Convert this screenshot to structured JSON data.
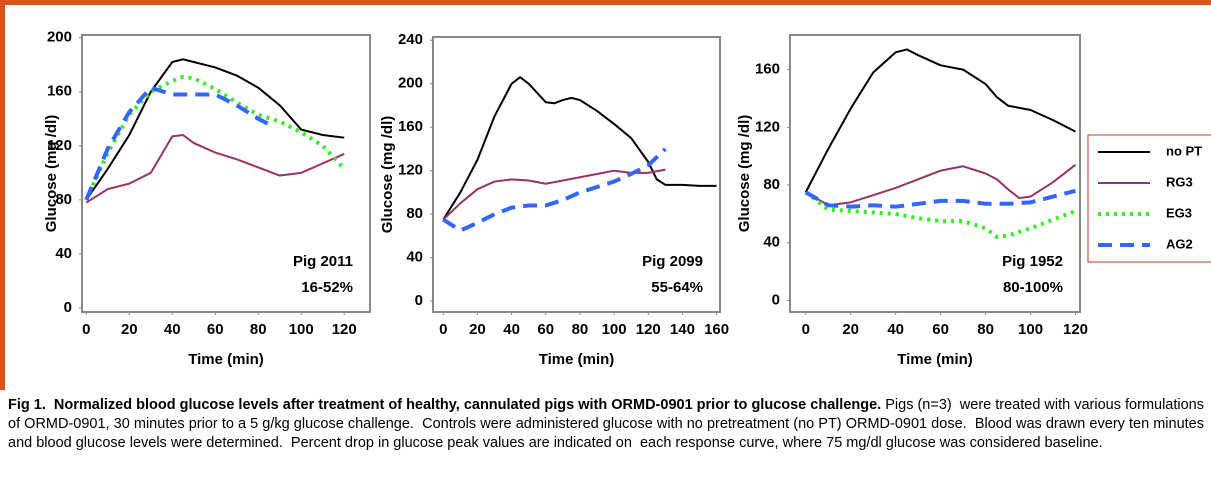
{
  "chart_data": [
    {
      "type": "line",
      "x_label": "Time (min)",
      "y_label": "Glucose (mg /dl)",
      "annotations": [
        "Pig 2011",
        "16-52%"
      ],
      "xlim": [
        -2,
        132
      ],
      "ylim": [
        -3,
        202
      ],
      "xticks": [
        0,
        20,
        40,
        60,
        80,
        100,
        120
      ],
      "yticks": [
        0,
        40,
        80,
        120,
        160,
        200
      ],
      "series": [
        {
          "color": "#000000",
          "dash": "solid",
          "x": [
            0,
            10,
            20,
            30,
            40,
            45,
            50,
            60,
            70,
            80,
            90,
            100,
            110,
            120
          ],
          "values": [
            80,
            103,
            128,
            160,
            182,
            184,
            182,
            178,
            172,
            163,
            150,
            132,
            128,
            126
          ]
        },
        {
          "color": "#993366",
          "dash": "solid",
          "x": [
            0,
            10,
            20,
            30,
            40,
            45,
            50,
            60,
            70,
            80,
            90,
            100,
            110,
            120
          ],
          "values": [
            78,
            88,
            92,
            100,
            127,
            128,
            122,
            115,
            110,
            104,
            98,
            100,
            107,
            114
          ]
        },
        {
          "color": "#33ee22",
          "dash": "dotted",
          "x": [
            0,
            10,
            20,
            30,
            40,
            45,
            50,
            60,
            70,
            80,
            90,
            100,
            110,
            120
          ],
          "values": [
            80,
            115,
            143,
            160,
            168,
            171,
            170,
            162,
            152,
            143,
            138,
            130,
            120,
            103
          ]
        },
        {
          "color": "#3366ff",
          "dash": "dashed",
          "x": [
            0,
            10,
            20,
            30,
            40,
            50,
            60,
            70,
            80,
            85
          ],
          "values": [
            80,
            118,
            145,
            163,
            158,
            158,
            158,
            150,
            140,
            136
          ]
        }
      ]
    },
    {
      "type": "line",
      "x_label": "Time (min)",
      "y_label": "Glucose (mg /dl)",
      "annotations": [
        "Pig 2099",
        "55-64%"
      ],
      "xlim": [
        -6,
        162
      ],
      "ylim": [
        -10,
        243
      ],
      "xticks": [
        0,
        20,
        40,
        60,
        80,
        100,
        120,
        140,
        160
      ],
      "yticks": [
        0,
        40,
        80,
        120,
        160,
        200,
        240
      ],
      "series": [
        {
          "color": "#000000",
          "dash": "solid",
          "x": [
            0,
            10,
            20,
            30,
            40,
            45,
            50,
            60,
            65,
            70,
            75,
            80,
            90,
            100,
            110,
            120,
            125,
            130,
            140,
            150,
            160
          ],
          "values": [
            75,
            100,
            130,
            170,
            200,
            206,
            200,
            183,
            182,
            185,
            187,
            185,
            175,
            163,
            150,
            128,
            112,
            107,
            107,
            106,
            106
          ]
        },
        {
          "color": "#993366",
          "dash": "solid",
          "x": [
            0,
            10,
            20,
            30,
            40,
            50,
            60,
            70,
            80,
            90,
            100,
            110,
            120,
            130
          ],
          "values": [
            75,
            90,
            103,
            110,
            112,
            111,
            108,
            111,
            114,
            117,
            120,
            118,
            118,
            121
          ]
        },
        {
          "color": "#3366ff",
          "dash": "dashed",
          "x": [
            0,
            10,
            20,
            30,
            40,
            50,
            60,
            70,
            80,
            90,
            100,
            110,
            120,
            130
          ],
          "values": [
            75,
            65,
            72,
            80,
            86,
            88,
            88,
            93,
            100,
            105,
            110,
            117,
            125,
            140
          ]
        }
      ]
    },
    {
      "type": "line",
      "x_label": "Time (min)",
      "y_label": "Glucose (mg /dl)",
      "annotations": [
        "Pig 1952",
        "80-100%"
      ],
      "xlim": [
        -7,
        122
      ],
      "ylim": [
        -8,
        184
      ],
      "xticks": [
        0,
        20,
        40,
        60,
        80,
        100,
        120
      ],
      "yticks": [
        0,
        40,
        80,
        120,
        160
      ],
      "series": [
        {
          "name": "no PT",
          "color": "#000000",
          "dash": "solid",
          "x": [
            0,
            10,
            20,
            30,
            40,
            45,
            50,
            60,
            70,
            80,
            85,
            90,
            100,
            110,
            120
          ],
          "values": [
            75,
            105,
            133,
            158,
            172,
            174,
            170,
            163,
            160,
            150,
            141,
            135,
            132,
            125,
            117
          ]
        },
        {
          "name": "RG3",
          "color": "#993366",
          "dash": "solid",
          "x": [
            0,
            10,
            20,
            30,
            40,
            50,
            60,
            70,
            80,
            85,
            90,
            95,
            100,
            110,
            120
          ],
          "values": [
            75,
            66,
            68,
            73,
            78,
            84,
            90,
            93,
            88,
            84,
            77,
            71,
            72,
            82,
            94
          ]
        },
        {
          "name": "EG3",
          "color": "#33ee22",
          "dash": "dotted",
          "x": [
            0,
            10,
            20,
            30,
            40,
            50,
            60,
            70,
            80,
            85,
            90,
            100,
            110,
            120
          ],
          "values": [
            75,
            63,
            62,
            61,
            60,
            57,
            55,
            55,
            50,
            44,
            45,
            50,
            56,
            62
          ]
        },
        {
          "name": "AG2",
          "color": "#3366ff",
          "dash": "dashed",
          "x": [
            0,
            10,
            20,
            30,
            40,
            50,
            60,
            70,
            80,
            90,
            100,
            110,
            120
          ],
          "values": [
            75,
            66,
            65,
            66,
            65,
            67,
            69,
            69,
            67,
            67,
            68,
            72,
            76
          ]
        }
      ]
    }
  ],
  "caption": {
    "bold": "Fig 1.  Normalized blood glucose levels after treatment of healthy, cannulated pigs with ORMD-0901 prior to glucose challenge.",
    "text": "Pigs (n=3)  were treated with various formulations of ORMD-0901, 30 minutes prior to a 5 g/kg glucose challenge.  Controls were administered glucose with no pretreatment (no PT) ORMD-0901 dose.  Blood was drawn every ten minutes  and blood glucose levels were determined.  Percent drop in glucose peak values are indicated on  each response curve, where 75 mg/dl glucose was considered baseline."
  }
}
